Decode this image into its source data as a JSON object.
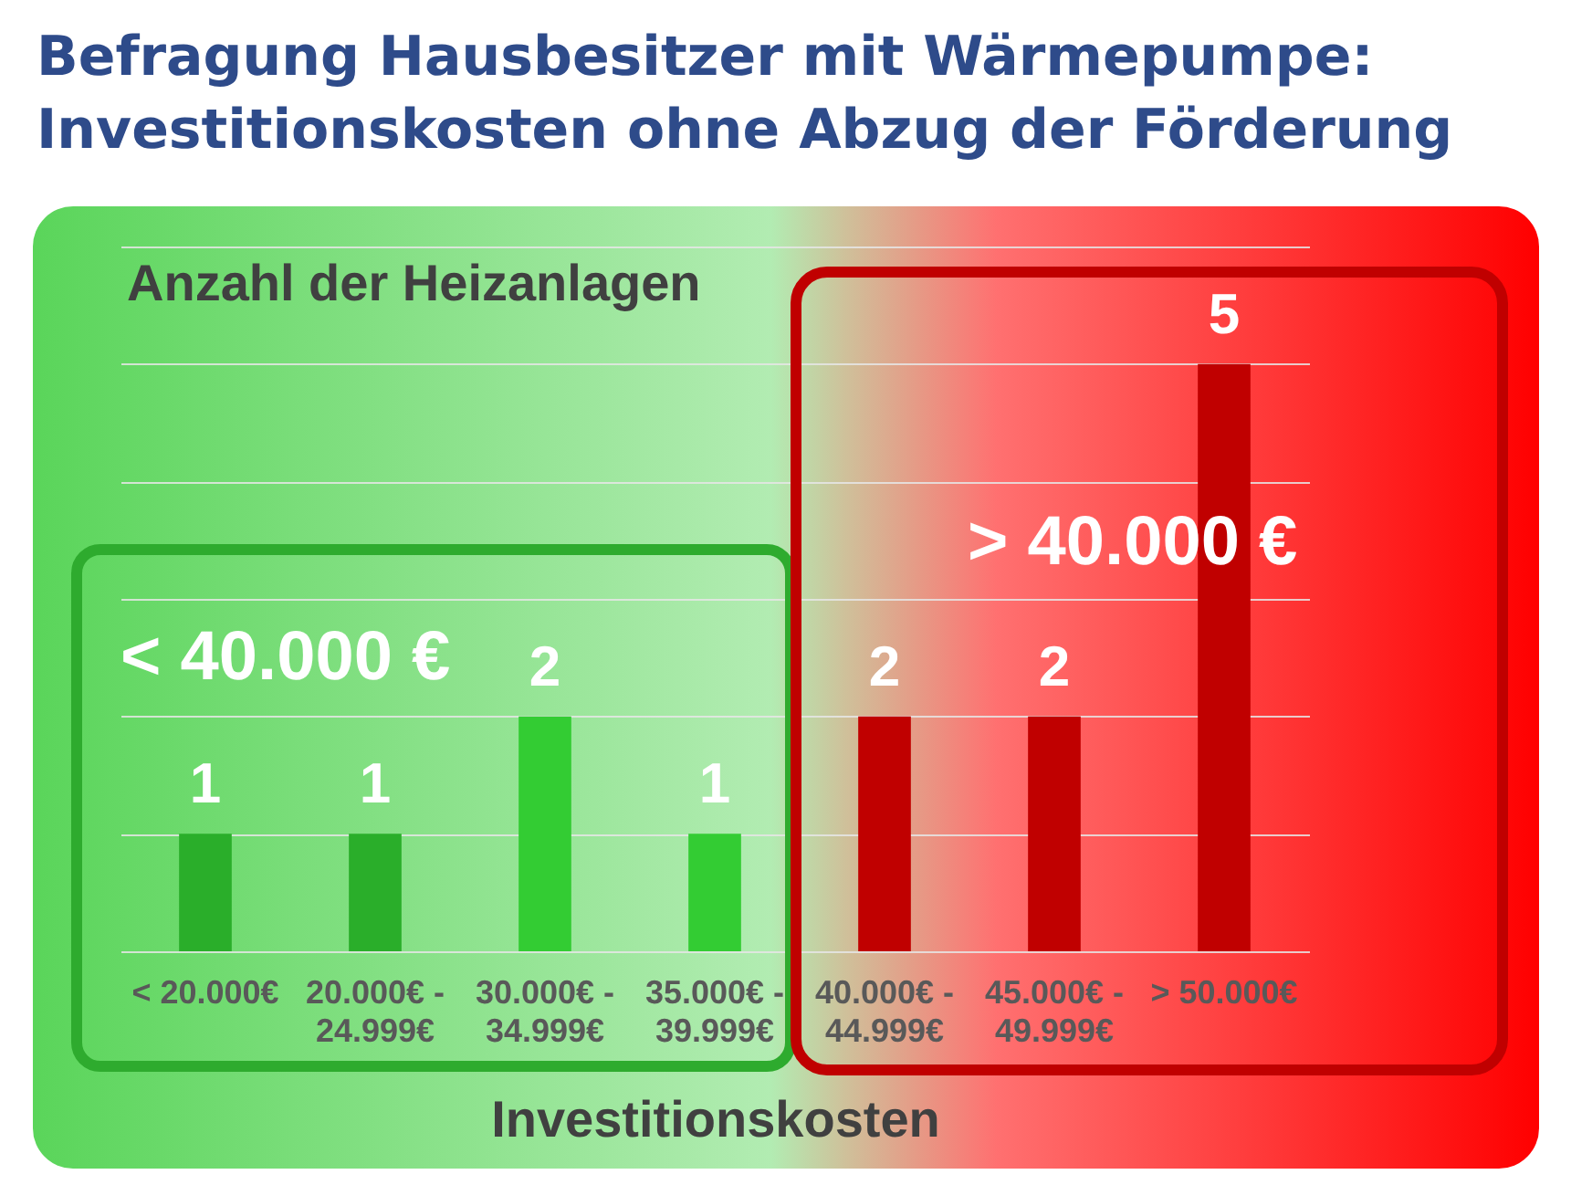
{
  "chart_data": {
    "type": "bar",
    "title": "Befragung Hausbesitzer mit Wärmepumpe: Investitionskosten ohne Abzug der Förderung",
    "xlabel": "Investitionskosten",
    "ylabel": "Anzahl der Heizanlagen",
    "categories": [
      "< 20.000€",
      "20.000€ - 24.999€",
      "30.000€ - 34.999€",
      "35.000€ - 39.999€",
      "40.000€ - 44.999€",
      "45.000€ - 49.999€",
      "> 50.000€"
    ],
    "values": [
      1,
      1,
      2,
      1,
      2,
      2,
      5
    ],
    "colors": [
      "#2aae2a",
      "#2aae2a",
      "#33cc33",
      "#33cc33",
      "#c00000",
      "#c00000",
      "#c00000"
    ],
    "ylim": [
      0,
      6
    ],
    "yticks": [
      {
        "value": 0,
        "label": null
      },
      {
        "value": 1,
        "label": null
      },
      {
        "value": 2,
        "label": null
      },
      {
        "value": 3,
        "label": null
      },
      {
        "value": 4,
        "label": null
      },
      {
        "value": 5,
        "label": null
      },
      {
        "value": 6,
        "label": null
      }
    ],
    "grid": "y",
    "tick_labels": "x",
    "data_labels": true,
    "annotations": [
      "< 40.000 €",
      "> 40.000 €"
    ]
  }
}
